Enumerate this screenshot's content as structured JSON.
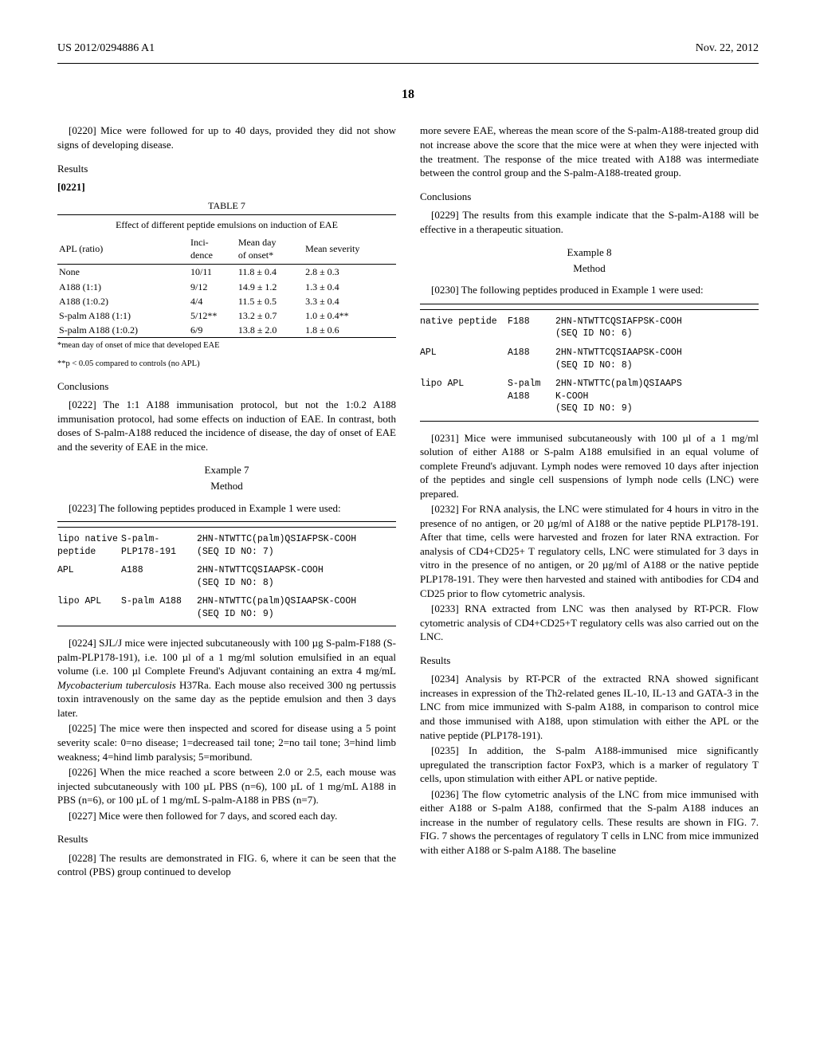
{
  "header": {
    "left": "US 2012/0294886 A1",
    "right": "Nov. 22, 2012"
  },
  "page_number": "18",
  "p0220": "[0220]   Mice were followed for up to 40 days, provided they did not show signs of developing disease.",
  "results_h": "Results",
  "p0221": "[0221]",
  "table7": {
    "caption": "TABLE 7",
    "title": "Effect of different peptide emulsions on induction of EAE",
    "cols": [
      "APL (ratio)",
      "Inci-\ndence",
      "Mean day\nof onset*",
      "Mean severity"
    ],
    "rows": [
      [
        "None",
        "10/11",
        "11.8 ± 0.4",
        "2.8 ± 0.3"
      ],
      [
        "A188 (1:1)",
        "9/12",
        "14.9 ± 1.2",
        "1.3 ± 0.4"
      ],
      [
        "A188 (1:0.2)",
        "4/4",
        "11.5 ± 0.5",
        "3.3 ± 0.4"
      ],
      [
        "S-palm A188 (1:1)",
        "5/12**",
        "13.2 ± 0.7",
        "1.0 ± 0.4**"
      ],
      [
        "S-palm A188 (1:0.2)",
        "6/9",
        "13.8 ± 2.0",
        "1.8 ± 0.6"
      ]
    ],
    "fn1": "*mean day of onset of mice that developed EAE",
    "fn2": "**p < 0.05 compared to controls (no APL)"
  },
  "conclusions_h": "Conclusions",
  "p0222": "[0222]   The 1:1 A188 immunisation protocol, but not the 1:0.2 A188 immunisation protocol, had some effects on induction of EAE. In contrast, both doses of S-palm-A188 reduced the incidence of disease, the day of onset of EAE and the severity of EAE in the mice.",
  "ex7": "Example 7",
  "method_h": "Method",
  "p0223": "[0223]   The following peptides produced in Example 1 were used:",
  "pep7": {
    "r1": {
      "c1": "lipo native peptide",
      "c2": "S-palm-PLP178-191",
      "c3a": "2HN-NTWTTC(palm)QSIAFPSK-COOH",
      "c3b": "(SEQ ID NO: 7)"
    },
    "r2": {
      "c1": "APL",
      "c2": "A188",
      "c3a": "2HN-NTWTTCQSIAAPSK-COOH",
      "c3b": "(SEQ ID NO: 8)"
    },
    "r3": {
      "c1": "lipo APL",
      "c2": "S-palm A188",
      "c3a": "2HN-NTWTTC(palm)QSIAAPSK-COOH",
      "c3b": "(SEQ ID NO: 9)"
    }
  },
  "p0224a": "[0224]   SJL/J mice were injected subcutaneously with 100 µg S-palm-F188 (S-palm-PLP178-191), i.e. 100 µl of a 1 mg/ml solution emulsified in an equal volume (i.e. 100 µl Complete Freund's Adjuvant containing an extra 4 mg/mL ",
  "p0224i": "Mycobacterium tuberculosis",
  "p0224b": " H37Ra. Each mouse also received 300 ng pertussis toxin intravenously on the same day as the peptide emulsion and then 3 days later.",
  "p0225": "[0225]   The mice were then inspected and scored for disease using a 5 point severity scale: 0=no disease; 1=decreased tail tone; 2=no tail tone; 3=hind limb weakness; 4=hind limb paralysis; 5=moribund.",
  "p0226": "[0226]   When the mice reached a score between 2.0 or 2.5, each mouse was injected subcutaneously with 100 µL PBS (n=6), 100 µL of 1 mg/mL A188 in PBS (n=6), or 100 µL of 1 mg/mL S-palm-A188 in PBS (n=7).",
  "p0227": "[0227]   Mice were then followed for 7 days, and scored each day.",
  "p0228": "[0228]   The results are demonstrated in FIG. 6, where it can be seen that the control (PBS) group continued to develop",
  "p_cont": "more severe EAE, whereas the mean score of the S-palm-A188-treated group did not increase above the score that the mice were at when they were injected with the treatment. The response of the mice treated with A188 was intermediate between the control group and the S-palm-A188-treated group.",
  "p0229": "[0229]   The results from this example indicate that the S-palm-A188 will be effective in a therapeutic situation.",
  "ex8": "Example 8",
  "p0230": "[0230]   The following peptides produced in Example 1 were used:",
  "pep8": {
    "r1": {
      "c1": "native peptide",
      "c2": "F188",
      "c3a": "2HN-NTWTTCQSIAFPSK-COOH",
      "c3b": "(SEQ ID NO: 6)"
    },
    "r2": {
      "c1": "APL",
      "c2": "A188",
      "c3a": "2HN-NTWTTCQSIAAPSK-COOH",
      "c3b": "(SEQ ID NO: 8)"
    },
    "r3": {
      "c1": "lipo APL",
      "c2": "S-palm A188",
      "c3a": "2HN-NTWTTC(palm)QSIAAPS",
      "c3b": "K-COOH",
      "c3c": "(SEQ ID NO: 9)"
    }
  },
  "p0231": "[0231]   Mice were immunised subcutaneously with 100 µl of a 1 mg/ml solution of either A188 or S-palm A188 emulsified in an equal volume of complete Freund's adjuvant. Lymph nodes were removed 10 days after injection of the peptides and single cell suspensions of lymph node cells (LNC) were prepared.",
  "p0232": "[0232]   For RNA analysis, the LNC were stimulated for 4 hours in vitro in the presence of no antigen, or 20 µg/ml of A188 or the native peptide PLP178-191. After that time, cells were harvested and frozen for later RNA extraction. For analysis of CD4+CD25+ T regulatory cells, LNC were stimulated for 3 days in vitro in the presence of no antigen, or 20 µg/ml of A188 or the native peptide PLP178-191. They were then harvested and stained with antibodies for CD4 and CD25 prior to flow cytometric analysis.",
  "p0233": "[0233]   RNA extracted from LNC was then analysed by RT-PCR. Flow cytometric analysis of CD4+CD25+T regulatory cells was also carried out on the LNC.",
  "p0234": "[0234]   Analysis by RT-PCR of the extracted RNA showed significant increases in expression of the Th2-related genes IL-10, IL-13 and GATA-3 in the LNC from mice immunized with S-palm A188, in comparison to control mice and those immunised with A188, upon stimulation with either the APL or the native peptide (PLP178-191).",
  "p0235": "[0235]   In addition, the S-palm A188-immunised mice significantly upregulated the transcription factor FoxP3, which is a marker of regulatory T cells, upon stimulation with either APL or native peptide.",
  "p0236": "[0236]   The flow cytometric analysis of the LNC from mice immunised with either A188 or S-palm A188, confirmed that the S-palm A188 induces an increase in the number of regulatory cells. These results are shown in FIG. 7. FIG. 7 shows the percentages of regulatory T cells in LNC from mice immunized with either A188 or S-palm A188. The baseline"
}
